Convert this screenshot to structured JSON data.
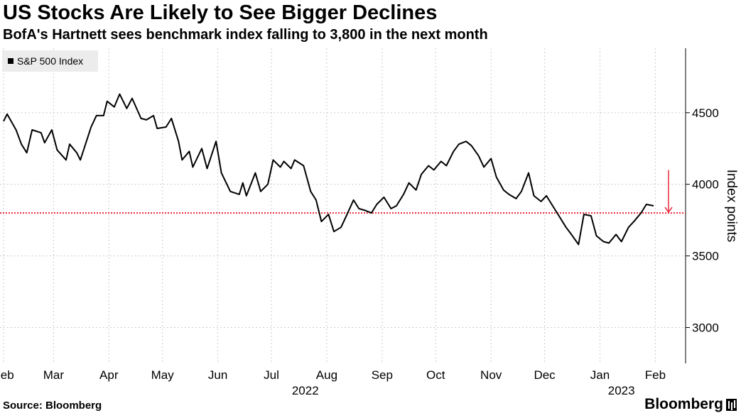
{
  "header": {
    "title": "US Stocks Are Likely to See Bigger Declines",
    "subtitle": "BofA's Hartnett sees benchmark index falling to 3,800 in the next month"
  },
  "footer": {
    "source": "Source: Bloomberg",
    "brand": "Bloomberg"
  },
  "colors": {
    "line": "#000000",
    "target": "#e8293b",
    "grid": "#cccccc",
    "legend_bg": "#ececec"
  },
  "chart_data": {
    "type": "line",
    "ylabel": "Index points",
    "ylim": [
      2750,
      4950
    ],
    "yticks": [
      3000,
      3500,
      4000,
      4500
    ],
    "ytick_labels": [
      "3000",
      "3500",
      "4000",
      "4500"
    ],
    "grid": true,
    "legend_position": "top-left",
    "x_start": "2022-02-01",
    "x_end": "2023-02-08",
    "xtick_dates": [
      "2022-02-01",
      "2022-03-01",
      "2022-04-01",
      "2022-05-01",
      "2022-06-01",
      "2022-07-01",
      "2022-08-01",
      "2022-09-01",
      "2022-10-01",
      "2022-11-01",
      "2022-12-01",
      "2023-01-01",
      "2023-02-01"
    ],
    "xtick_labels": [
      "Feb",
      "Mar",
      "Apr",
      "May",
      "Jun",
      "Jul",
      "Aug",
      "Sep",
      "Oct",
      "Nov",
      "Dec",
      "Jan",
      "Feb"
    ],
    "year_labels": [
      {
        "label": "2022",
        "date": "2022-07-20"
      },
      {
        "label": "2023",
        "date": "2023-01-13"
      }
    ],
    "series": [
      {
        "name": "S&P 500 Index",
        "values": [
          [
            "2022-02-01",
            4440
          ],
          [
            "2022-02-03",
            4490
          ],
          [
            "2022-02-08",
            4380
          ],
          [
            "2022-02-11",
            4280
          ],
          [
            "2022-02-14",
            4220
          ],
          [
            "2022-02-17",
            4380
          ],
          [
            "2022-02-22",
            4360
          ],
          [
            "2022-02-24",
            4290
          ],
          [
            "2022-02-28",
            4380
          ],
          [
            "2022-03-03",
            4240
          ],
          [
            "2022-03-08",
            4170
          ],
          [
            "2022-03-10",
            4280
          ],
          [
            "2022-03-14",
            4220
          ],
          [
            "2022-03-16",
            4170
          ],
          [
            "2022-03-22",
            4400
          ],
          [
            "2022-03-25",
            4480
          ],
          [
            "2022-03-29",
            4480
          ],
          [
            "2022-03-31",
            4580
          ],
          [
            "2022-04-04",
            4540
          ],
          [
            "2022-04-07",
            4630
          ],
          [
            "2022-04-11",
            4530
          ],
          [
            "2022-04-14",
            4600
          ],
          [
            "2022-04-19",
            4460
          ],
          [
            "2022-04-22",
            4450
          ],
          [
            "2022-04-26",
            4480
          ],
          [
            "2022-04-28",
            4390
          ],
          [
            "2022-05-03",
            4400
          ],
          [
            "2022-05-06",
            4460
          ],
          [
            "2022-05-10",
            4300
          ],
          [
            "2022-05-12",
            4170
          ],
          [
            "2022-05-16",
            4230
          ],
          [
            "2022-05-18",
            4120
          ],
          [
            "2022-05-23",
            4250
          ],
          [
            "2022-05-26",
            4110
          ],
          [
            "2022-05-31",
            4300
          ],
          [
            "2022-06-03",
            4080
          ],
          [
            "2022-06-08",
            3950
          ],
          [
            "2022-06-13",
            3930
          ],
          [
            "2022-06-15",
            4010
          ],
          [
            "2022-06-17",
            3920
          ],
          [
            "2022-06-22",
            4080
          ],
          [
            "2022-06-25",
            3950
          ],
          [
            "2022-06-29",
            4000
          ],
          [
            "2022-07-02",
            4170
          ],
          [
            "2022-07-06",
            4120
          ],
          [
            "2022-07-08",
            4160
          ],
          [
            "2022-07-12",
            4110
          ],
          [
            "2022-07-14",
            4170
          ],
          [
            "2022-07-19",
            4130
          ],
          [
            "2022-07-23",
            3950
          ],
          [
            "2022-07-26",
            3890
          ],
          [
            "2022-07-29",
            3740
          ],
          [
            "2022-08-02",
            3790
          ],
          [
            "2022-08-05",
            3670
          ],
          [
            "2022-08-09",
            3700
          ],
          [
            "2022-08-12",
            3780
          ],
          [
            "2022-08-16",
            3890
          ],
          [
            "2022-08-19",
            3830
          ],
          [
            "2022-08-22",
            3820
          ],
          [
            "2022-08-26",
            3800
          ],
          [
            "2022-08-29",
            3860
          ],
          [
            "2022-09-02",
            3910
          ],
          [
            "2022-09-06",
            3830
          ],
          [
            "2022-09-09",
            3850
          ],
          [
            "2022-09-13",
            3930
          ],
          [
            "2022-09-16",
            4010
          ],
          [
            "2022-09-20",
            3960
          ],
          [
            "2022-09-23",
            4070
          ],
          [
            "2022-09-27",
            4130
          ],
          [
            "2022-09-30",
            4100
          ],
          [
            "2022-10-04",
            4160
          ],
          [
            "2022-10-07",
            4130
          ],
          [
            "2022-10-11",
            4230
          ],
          [
            "2022-10-14",
            4280
          ],
          [
            "2022-10-18",
            4300
          ],
          [
            "2022-10-21",
            4270
          ],
          [
            "2022-10-25",
            4200
          ],
          [
            "2022-10-28",
            4120
          ],
          [
            "2022-11-01",
            4180
          ],
          [
            "2022-11-04",
            4050
          ],
          [
            "2022-11-08",
            3960
          ],
          [
            "2022-11-11",
            3930
          ],
          [
            "2022-11-15",
            3900
          ],
          [
            "2022-11-18",
            3950
          ],
          [
            "2022-11-22",
            4080
          ],
          [
            "2022-11-25",
            3920
          ],
          [
            "2022-11-29",
            3880
          ],
          [
            "2022-12-02",
            3920
          ],
          [
            "2022-12-06",
            3840
          ],
          [
            "2022-12-09",
            3780
          ],
          [
            "2022-12-13",
            3700
          ],
          [
            "2022-12-16",
            3650
          ],
          [
            "2022-12-20",
            3580
          ],
          [
            "2022-12-23",
            3790
          ],
          [
            "2022-12-27",
            3780
          ],
          [
            "2022-12-30",
            3640
          ],
          [
            "2023-01-03",
            3600
          ],
          [
            "2023-01-06",
            3590
          ],
          [
            "2023-01-10",
            3650
          ],
          [
            "2023-01-13",
            3600
          ],
          [
            "2023-01-17",
            3700
          ],
          [
            "2023-01-20",
            3740
          ],
          [
            "2023-01-24",
            3800
          ],
          [
            "2023-01-27",
            3860
          ],
          [
            "2023-01-31",
            3850
          ]
        ]
      }
    ],
    "target": {
      "value": 3800,
      "label": "3,800"
    },
    "arrow": {
      "from": 4100,
      "to": 3800
    }
  }
}
